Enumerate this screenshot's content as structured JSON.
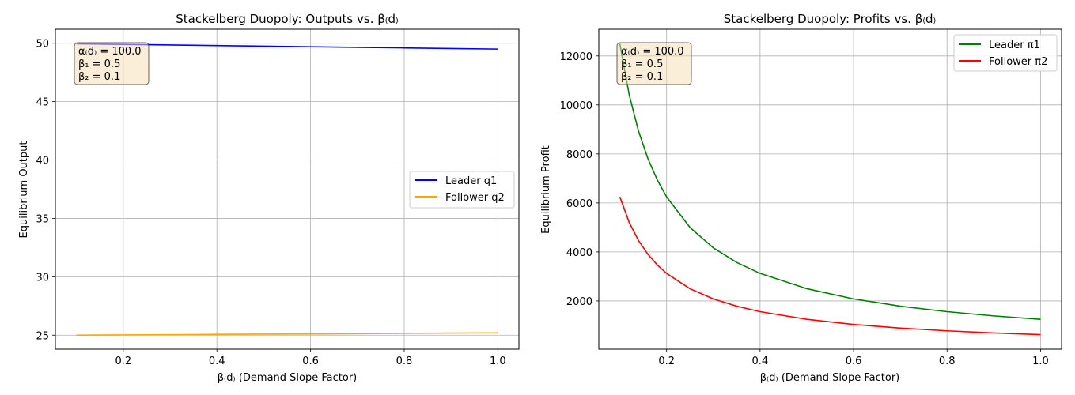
{
  "chart_data": [
    {
      "type": "line",
      "title": "Stackelberg Duopoly: Outputs vs. β₍d₎",
      "xlabel": "β₍d₎ (Demand Slope Factor)",
      "ylabel": "Equilibrium Output",
      "xlim": [
        0.055,
        1.045
      ],
      "ylim": [
        23.8,
        51.2
      ],
      "xticks": [
        0.2,
        0.4,
        0.6,
        0.8,
        1.0
      ],
      "xtick_labels": [
        "0.2",
        "0.4",
        "0.6",
        "0.8",
        "1.0"
      ],
      "yticks": [
        25,
        30,
        35,
        40,
        45,
        50
      ],
      "ytick_labels": [
        "25",
        "30",
        "35",
        "40",
        "45",
        "50"
      ],
      "grid": true,
      "legend_position": "center-right",
      "annotation": [
        "α₍d₎ = 100.0",
        "β₁ = 0.5",
        "β₂ = 0.1"
      ],
      "series": [
        {
          "name": "Leader q1",
          "color": "#0000ff",
          "x": [
            0.1,
            0.2,
            0.3,
            0.4,
            0.5,
            0.6,
            0.7,
            0.8,
            0.9,
            1.0
          ],
          "y": [
            49.95,
            49.9,
            49.85,
            49.8,
            49.75,
            49.7,
            49.65,
            49.6,
            49.55,
            49.5
          ]
        },
        {
          "name": "Follower q2",
          "color": "#ffa500",
          "x": [
            0.1,
            0.2,
            0.3,
            0.4,
            0.5,
            0.6,
            0.7,
            0.8,
            0.9,
            1.0
          ],
          "y": [
            25.0,
            25.02,
            25.04,
            25.07,
            25.09,
            25.11,
            25.13,
            25.16,
            25.18,
            25.2
          ]
        }
      ]
    },
    {
      "type": "line",
      "title": "Stackelberg Duopoly: Profits vs. β₍d₎",
      "xlabel": "β₍d₎ (Demand Slope Factor)",
      "ylabel": "Equilibrium Profit",
      "xlim": [
        0.055,
        1.045
      ],
      "ylim": [
        31,
        13090
      ],
      "xticks": [
        0.2,
        0.4,
        0.6,
        0.8,
        1.0
      ],
      "xtick_labels": [
        "0.2",
        "0.4",
        "0.6",
        "0.8",
        "1.0"
      ],
      "yticks": [
        2000,
        4000,
        6000,
        8000,
        10000,
        12000
      ],
      "ytick_labels": [
        "2000",
        "4000",
        "6000",
        "8000",
        "10000",
        "12000"
      ],
      "grid": true,
      "legend_position": "top-right",
      "annotation": [
        "α₍d₎ = 100.0",
        "β₁ = 0.5",
        "β₂ = 0.1"
      ],
      "series": [
        {
          "name": "Leader π1",
          "color": "#008000",
          "x": [
            0.1,
            0.12,
            0.14,
            0.16,
            0.18,
            0.2,
            0.25,
            0.3,
            0.35,
            0.4,
            0.5,
            0.6,
            0.7,
            0.8,
            0.9,
            1.0
          ],
          "y": [
            12500,
            10417,
            8929,
            7813,
            6944,
            6250,
            5000,
            4167,
            3571,
            3125,
            2500,
            2083,
            1786,
            1563,
            1389,
            1250
          ]
        },
        {
          "name": "Follower π2",
          "color": "#ff0000",
          "x": [
            0.1,
            0.12,
            0.14,
            0.16,
            0.18,
            0.2,
            0.25,
            0.3,
            0.35,
            0.4,
            0.5,
            0.6,
            0.7,
            0.8,
            0.9,
            1.0
          ],
          "y": [
            6250,
            5208,
            4464,
            3906,
            3472,
            3125,
            2500,
            2083,
            1786,
            1563,
            1250,
            1042,
            893,
            781,
            694,
            625
          ]
        }
      ]
    }
  ]
}
